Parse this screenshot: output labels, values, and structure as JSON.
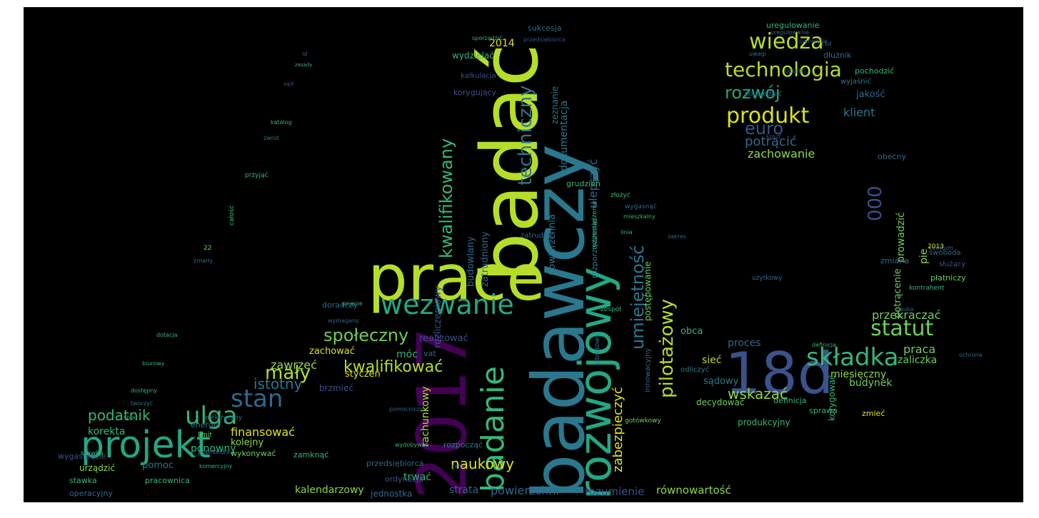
{
  "words": [
    {
      "id": "badac",
      "text": "badać",
      "color": "#b5de2b"
    },
    {
      "id": "badawczy",
      "text": "badawczy",
      "color": "#2a788e"
    },
    {
      "id": "2017",
      "text": "2017",
      "color": "#440154"
    },
    {
      "id": "prace",
      "text": "prace",
      "color": "#b5de2b"
    },
    {
      "id": "rozwojowy",
      "text": "rozwojowy",
      "color": "#22a884"
    },
    {
      "id": "18d",
      "text": "18d",
      "color": "#3b528b"
    },
    {
      "id": "badanie",
      "text": "badanie",
      "color": "#35b779"
    },
    {
      "id": "projekt",
      "text": "projekt",
      "color": "#22a884"
    },
    {
      "id": "wezwanie",
      "text": "wezwanie",
      "color": "#22a884"
    },
    {
      "id": "technologia",
      "text": "technologia",
      "color": "#b5de2b"
    },
    {
      "id": "wiedza",
      "text": "wiedza",
      "color": "#b5de2b"
    },
    {
      "id": "produkt",
      "text": "produkt",
      "color": "#dde318"
    },
    {
      "id": "skladka",
      "text": "składka",
      "color": "#35b779"
    },
    {
      "id": "statut",
      "text": "statut",
      "color": "#6ece58"
    },
    {
      "id": "ulga",
      "text": "ulga",
      "color": "#35b779"
    },
    {
      "id": "stan",
      "text": "stan",
      "color": "#31688e"
    },
    {
      "id": "maly",
      "text": "mały",
      "color": "#b5de2b"
    },
    {
      "id": "spoleczny",
      "text": "społeczny",
      "color": "#6ece58"
    },
    {
      "id": "kwalifikowac",
      "text": "kwalifikować",
      "color": "#b5de2b"
    },
    {
      "id": "kwalifikowany",
      "text": "kwalifikowany",
      "color": "#35b779"
    },
    {
      "id": "techniczny",
      "text": "techniczny",
      "color": "#2a788e"
    },
    {
      "id": "umiejetnosc",
      "text": "umiejętność",
      "color": "#2a788e"
    },
    {
      "id": "pilotazowy",
      "text": "pilotażowy",
      "color": "#b5de2b"
    },
    {
      "id": "rozwoj",
      "text": "rozwój",
      "color": "#22a884"
    },
    {
      "id": "euro",
      "text": "euro",
      "color": "#3b528b"
    },
    {
      "id": "potracic",
      "text": "potrącić",
      "color": "#31688e"
    },
    {
      "id": "klient",
      "text": "klient",
      "color": "#2a788e"
    },
    {
      "id": "zachowanie",
      "text": "zachowanie",
      "color": "#90d743"
    },
    {
      "id": "naukowy",
      "text": "naukowy",
      "color": "#dde318"
    },
    {
      "id": "podatnik",
      "text": "podatnik",
      "color": "#35b779"
    },
    {
      "id": "finansowac",
      "text": "finansować",
      "color": "#dde318"
    },
    {
      "id": "istotny",
      "text": "istotny",
      "color": "#2a788e"
    },
    {
      "id": "zawrzec",
      "text": "zawrzeć",
      "color": "#90d743"
    },
    {
      "id": "korekta",
      "text": "korekta",
      "color": "#35b779"
    },
    {
      "id": "kalendarzowy",
      "text": "kalendarzowy",
      "color": "#90d743"
    },
    {
      "id": "rozumienie",
      "text": "rozumienie",
      "color": "#3b528b"
    },
    {
      "id": "rownowartosc",
      "text": "równowartość",
      "color": "#90d743"
    },
    {
      "id": "strata",
      "text": "strata",
      "color": "#31688e"
    },
    {
      "id": "powierzchni",
      "text": "powierzchni",
      "color": "#31688e"
    },
    {
      "id": "przekraczac",
      "text": "przekraczać",
      "color": "#6ece58"
    },
    {
      "id": "wskazac",
      "text": "wskazać",
      "color": "#90d743"
    },
    {
      "id": "praca",
      "text": "praca",
      "color": "#6ece58"
    },
    {
      "id": "zaliczka",
      "text": "zaliczka",
      "color": "#6ece58"
    },
    {
      "id": "miesieczny",
      "text": "miesięczny",
      "color": "#90d743"
    },
    {
      "id": "budynek",
      "text": "budynek",
      "color": "#6ece58"
    },
    {
      "id": "siec",
      "text": "sieć",
      "color": "#b5de2b"
    },
    {
      "id": "sadowy",
      "text": "sądowy",
      "color": "#2a788e"
    },
    {
      "id": "obca",
      "text": "obca",
      "color": "#35b779"
    },
    {
      "id": "proces",
      "text": "proces",
      "color": "#31688e"
    },
    {
      "id": "moc",
      "text": "móc",
      "color": "#35b779"
    },
    {
      "id": "realizowac",
      "text": "realizować",
      "color": "#3b528b"
    },
    {
      "id": "zachowac",
      "text": "zachować",
      "color": "#dde318"
    },
    {
      "id": "styczen",
      "text": "styczeń",
      "color": "#dde318"
    },
    {
      "id": "ponowny",
      "text": "ponowny",
      "color": "#35b779"
    },
    {
      "id": "pomoc",
      "text": "pomoc",
      "color": "#2a788e"
    },
    {
      "id": "kolejny",
      "text": "kolejny",
      "color": "#90d743"
    },
    {
      "id": "trwac",
      "text": "trwać",
      "color": "#35b779"
    },
    {
      "id": "rachunkowy",
      "text": "rachunkowy",
      "color": "#b5de2b"
    },
    {
      "id": "zabezpieczyc",
      "text": "zabezpieczyć",
      "color": "#dde318"
    },
    {
      "id": "ulepszyc",
      "text": "ulepszyć",
      "color": "#31688e"
    },
    {
      "id": "000",
      "text": "000",
      "color": "#3b528b"
    },
    {
      "id": "2014",
      "text": "2014",
      "color": "#dde318"
    },
    {
      "id": "wydzielac",
      "text": "wydzielać",
      "color": "#35b779"
    },
    {
      "id": "produkcyjny",
      "text": "produkcyjny",
      "color": "#35b779"
    },
    {
      "id": "jednostka",
      "text": "jednostka",
      "color": "#31688e"
    },
    {
      "id": "operacyjny",
      "text": "operacyjny",
      "color": "#31688e"
    },
    {
      "id": "uregulowanie",
      "text": "uregulowanie",
      "color": "#35b779"
    },
    {
      "id": "dokumentacja",
      "text": "dokumentacja",
      "color": "#2a788e"
    },
    {
      "id": "zeznanie",
      "text": "zeznanie",
      "color": "#2a788e"
    },
    {
      "id": "budowlany",
      "text": "budowlany",
      "color": "#31688e"
    },
    {
      "id": "zatrudniony",
      "text": "zatrudniony",
      "color": "#31688e"
    },
    {
      "id": "rozliczeniowy",
      "text": "rozliczeniowy",
      "color": "#3b528b"
    },
    {
      "id": "powierzchnia",
      "text": "powierzchnia",
      "color": "#2a788e"
    },
    {
      "id": "prowadzic",
      "text": "prowadzić",
      "color": "#6ece58"
    },
    {
      "id": "potracenie",
      "text": "potrącenie",
      "color": "#6ece58"
    },
    {
      "id": "korygowac",
      "text": "korygować",
      "color": "#35b779"
    },
    {
      "id": "decydowac",
      "text": "decydować",
      "color": "#6ece58"
    },
    {
      "id": "jakosc",
      "text": "jakość",
      "color": "#31688e"
    },
    {
      "id": "grudzien",
      "text": "grudzień",
      "color": "#35b779"
    },
    {
      "id": "vat",
      "text": "vat",
      "color": "#31688e"
    },
    {
      "id": "zmiana",
      "text": "zmiana",
      "color": "#31688e"
    },
    {
      "id": "pie",
      "text": "pie",
      "color": "#90d743"
    },
    {
      "id": "postepowanie",
      "text": "postępowanie",
      "color": "#6ece58"
    },
    {
      "id": "innowacyjny",
      "text": "innowacyjny",
      "color": "#31688e"
    },
    {
      "id": "brzmiec",
      "text": "brzmieć",
      "color": "#3b528b"
    },
    {
      "id": "zamknac",
      "text": "zamknąć",
      "color": "#35b779"
    },
    {
      "id": "urzadzic",
      "text": "urządzić",
      "color": "#90d743"
    },
    {
      "id": "stawka",
      "text": "stawka",
      "color": "#35b779"
    },
    {
      "id": "pracownica",
      "text": "pracownica",
      "color": "#35b779"
    },
    {
      "id": "wygasniecie",
      "text": "wygaśnięcie",
      "color": "#3b528b"
    },
    {
      "id": "energia",
      "text": "energia",
      "color": "#2a788e"
    },
    {
      "id": "wykonywac",
      "text": "wykonywać",
      "color": "#6ece58"
    },
    {
      "id": "przedsiebiorca",
      "text": "przedsiębiorca",
      "color": "#31688e"
    },
    {
      "id": "rozpoczac",
      "text": "rozpocząć",
      "color": "#2a788e"
    },
    {
      "id": "ordynacja",
      "text": "ordynacja",
      "color": "#3b528b"
    },
    {
      "id": "doradczy",
      "text": "doradczy",
      "color": "#31688e"
    },
    {
      "id": "platniczy",
      "text": "płatniczy",
      "color": "#6ece58"
    },
    {
      "id": "sluzacy",
      "text": "służący",
      "color": "#3b528b"
    },
    {
      "id": "swoboda",
      "text": "swoboda",
      "color": "#31688e"
    },
    {
      "id": "obecny",
      "text": "obecny",
      "color": "#31688e"
    },
    {
      "id": "pochodzic",
      "text": "pochodzić",
      "color": "#35b779"
    },
    {
      "id": "dluznik",
      "text": "dłużnik",
      "color": "#31688e"
    },
    {
      "id": "wyjasnic",
      "text": "wyjaśnić",
      "color": "#2a788e"
    },
    {
      "id": "sukcesja",
      "text": "sukcesja",
      "color": "#31688e"
    },
    {
      "id": "zmiec",
      "text": "zmieć",
      "color": "#dde318"
    },
    {
      "id": "sprawa",
      "text": "sprawa",
      "color": "#35b779"
    },
    {
      "id": "definicja",
      "text": "definicja",
      "color": "#35b779"
    },
    {
      "id": "odliczyc",
      "text": "odliczyć",
      "color": "#2a788e"
    },
    {
      "id": "zatrudnic",
      "text": "zatrudnić",
      "color": "#31688e"
    },
    {
      "id": "rozporzadzenie",
      "text": "rozporządzenie",
      "color": "#2a788e"
    },
    {
      "id": "korygujacy",
      "text": "korygujący",
      "color": "#3b528b"
    },
    {
      "id": "kalkulacja",
      "text": "kalkulacja",
      "color": "#3b528b"
    },
    {
      "id": "doradcy",
      "text": "doradczy",
      "color": "#31688e"
    }
  ],
  "small_words": [
    "uregulowanie",
    "poprzedzać",
    "uwagi",
    "pierwotny",
    "15d",
    "przedsiębiorca",
    "sporządzić",
    "id",
    "zasady",
    "sąd",
    "katalog",
    "zwrot",
    "przyjąć",
    "całość",
    "22",
    "zmarły",
    "dotacja",
    "biurowy",
    "dostępny",
    "tworzyć",
    "spiat",
    "stawka",
    "limit",
    "poprzedni",
    "komercyjny",
    "elektryczny",
    "gotówkowy",
    "rata",
    "pomocniczy",
    "wydobywać",
    "obrotowy",
    "zespół",
    "złożyć",
    "wygasnąć",
    "rozporządzenie",
    "linia",
    "mieszkalny",
    "użytkowy",
    "centrum",
    "kontrahent",
    "nauka",
    "2013",
    "definicja",
    "ochrona",
    "pojęcie",
    "wymagany",
    "koszt",
    "odsetki",
    "zakres"
  ]
}
